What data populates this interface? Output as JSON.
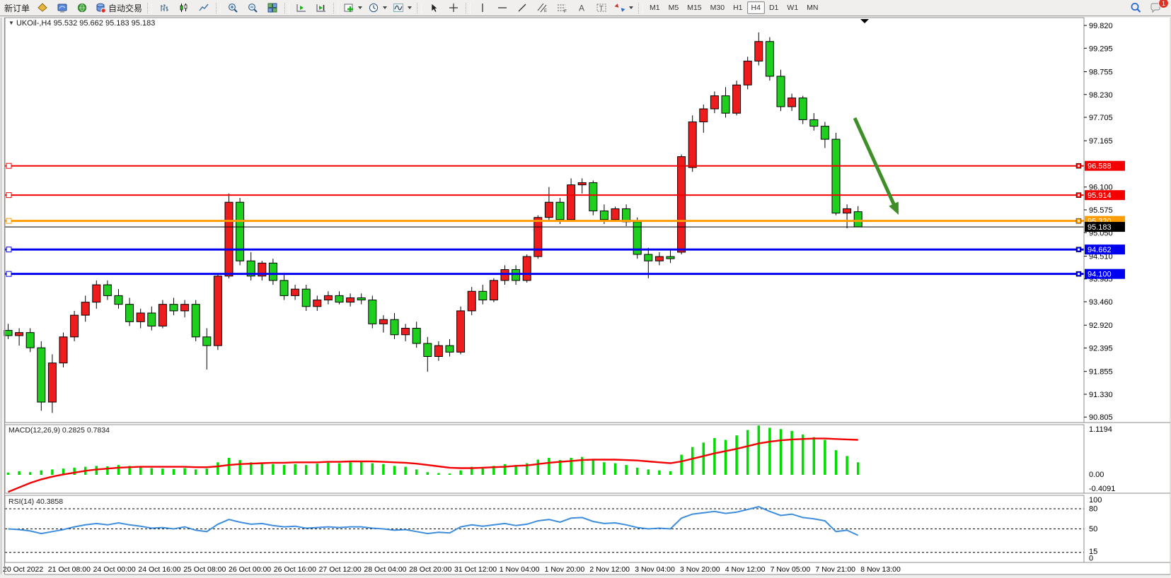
{
  "toolbar": {
    "new_order": "新订单",
    "autotrade": "自动交易",
    "timeframes": [
      "M1",
      "M5",
      "M15",
      "M30",
      "H1",
      "H4",
      "D1",
      "W1",
      "MN"
    ],
    "active_timeframe": "H4",
    "chat_badge": "1",
    "icons": [
      "gold-prism-icon",
      "blue-monitor-icon",
      "green-globe-icon",
      "autotrade-status-icon",
      "bar-chart-icon",
      "candlestick-chart-icon",
      "line-chart-icon",
      "zoom-in-icon",
      "zoom-out-icon",
      "tile-windows-icon",
      "auto-scroll-icon",
      "chart-shift-icon",
      "indicators-add-icon",
      "periods-clock-icon",
      "objects-wave-icon",
      "cursor-icon",
      "crosshair-icon",
      "vertical-line-icon",
      "horizontal-line-icon",
      "trendline-icon",
      "equidistant-channel-icon",
      "fibonacci-icon",
      "text-icon",
      "text-label-icon",
      "arrows-icon",
      "search-icon",
      "chat-icon"
    ]
  },
  "chart_header": {
    "expander": "▼",
    "symbol": "UKOil-,H4",
    "ohlc": "95.532 95.662 95.183 95.183"
  },
  "chart_data": {
    "type": "candlestick+macd+rsi",
    "title": "UKOil-,H4 95.532 95.662 95.183 95.183",
    "color_convention": "up=red down=green (CN)",
    "colors": {
      "up": "#ee1c1c",
      "down": "#1ecf1e",
      "wick": "#000000",
      "macd_hist": "#00dc00",
      "macd_signal": "#f40000",
      "rsi_line": "#3e8ddd",
      "arrow": "#3f8f29",
      "line_red": "#f40000",
      "line_orange": "#ff9c00",
      "line_blue": "#0000f0",
      "line_black": "#000000"
    },
    "price_axis": {
      "ticks": [
        99.82,
        99.295,
        98.755,
        98.23,
        97.705,
        97.165,
        96.1,
        95.575,
        95.05,
        94.51,
        93.985,
        93.46,
        92.92,
        92.395,
        91.855,
        91.33,
        90.805
      ]
    },
    "hlines": [
      {
        "price": 96.588,
        "color": "#f40000",
        "width": 2
      },
      {
        "price": 95.914,
        "color": "#f40000",
        "width": 2
      },
      {
        "price": 95.32,
        "color": "#ff9c00",
        "width": 3
      },
      {
        "price": 94.662,
        "color": "#0000f0",
        "width": 3
      },
      {
        "price": 94.1,
        "color": "#0000f0",
        "width": 3
      }
    ],
    "current_price": {
      "value": 95.183,
      "color": "#000000"
    },
    "time_labels": [
      "20 Oct 2022",
      "21 Oct 08:00",
      "24 Oct 00:00",
      "24 Oct 16:00",
      "25 Oct 08:00",
      "26 Oct 00:00",
      "26 Oct 16:00",
      "27 Oct 12:00",
      "28 Oct 04:00",
      "28 Oct 20:00",
      "31 Oct 12:00",
      "1 Nov 04:00",
      "1 Nov 20:00",
      "2 Nov 12:00",
      "3 Nov 04:00",
      "3 Nov 20:00",
      "4 Nov 12:00",
      "7 Nov 05:00",
      "7 Nov 21:00",
      "8 Nov 13:00"
    ],
    "candles": [
      [
        92.8,
        92.95,
        92.6,
        92.68
      ],
      [
        92.68,
        92.85,
        92.45,
        92.75
      ],
      [
        92.75,
        92.85,
        92.3,
        92.4
      ],
      [
        92.4,
        92.55,
        90.95,
        91.15
      ],
      [
        91.15,
        92.25,
        90.9,
        92.05
      ],
      [
        92.05,
        92.75,
        91.95,
        92.65
      ],
      [
        92.65,
        93.25,
        92.55,
        93.15
      ],
      [
        93.15,
        93.6,
        93.0,
        93.45
      ],
      [
        93.45,
        93.95,
        93.3,
        93.85
      ],
      [
        93.85,
        93.95,
        93.5,
        93.6
      ],
      [
        93.6,
        93.75,
        93.3,
        93.4
      ],
      [
        93.4,
        93.55,
        92.9,
        93.0
      ],
      [
        93.0,
        93.3,
        92.85,
        93.2
      ],
      [
        93.2,
        93.35,
        92.8,
        92.9
      ],
      [
        92.9,
        93.5,
        92.85,
        93.4
      ],
      [
        93.4,
        93.55,
        93.15,
        93.25
      ],
      [
        93.25,
        93.5,
        93.1,
        93.4
      ],
      [
        93.4,
        93.5,
        92.55,
        92.65
      ],
      [
        92.65,
        92.85,
        91.9,
        92.45
      ],
      [
        92.45,
        94.1,
        92.35,
        94.05
      ],
      [
        94.05,
        95.95,
        94.0,
        95.75
      ],
      [
        95.75,
        95.85,
        94.3,
        94.4
      ],
      [
        94.4,
        94.6,
        93.95,
        94.05
      ],
      [
        94.05,
        94.4,
        93.95,
        94.35
      ],
      [
        94.35,
        94.45,
        93.85,
        93.95
      ],
      [
        93.95,
        94.1,
        93.5,
        93.6
      ],
      [
        93.6,
        93.85,
        93.5,
        93.75
      ],
      [
        93.75,
        93.85,
        93.25,
        93.35
      ],
      [
        93.35,
        93.6,
        93.25,
        93.5
      ],
      [
        93.5,
        93.7,
        93.4,
        93.6
      ],
      [
        93.6,
        93.7,
        93.4,
        93.45
      ],
      [
        93.45,
        93.65,
        93.35,
        93.55
      ],
      [
        93.55,
        93.65,
        93.4,
        93.5
      ],
      [
        93.5,
        93.6,
        92.85,
        92.95
      ],
      [
        92.95,
        93.15,
        92.75,
        93.05
      ],
      [
        93.05,
        93.2,
        92.6,
        92.7
      ],
      [
        92.7,
        92.95,
        92.55,
        92.85
      ],
      [
        92.85,
        93.0,
        92.4,
        92.5
      ],
      [
        92.5,
        92.65,
        91.85,
        92.2
      ],
      [
        92.2,
        92.55,
        92.1,
        92.45
      ],
      [
        92.45,
        92.6,
        92.2,
        92.3
      ],
      [
        92.3,
        93.35,
        92.25,
        93.25
      ],
      [
        93.25,
        93.8,
        93.15,
        93.7
      ],
      [
        93.7,
        93.85,
        93.4,
        93.5
      ],
      [
        93.5,
        94.0,
        93.45,
        93.95
      ],
      [
        93.95,
        94.3,
        93.85,
        94.2
      ],
      [
        94.2,
        94.3,
        93.85,
        93.95
      ],
      [
        93.95,
        94.55,
        93.9,
        94.5
      ],
      [
        94.5,
        95.45,
        94.45,
        95.4
      ],
      [
        95.4,
        96.1,
        95.3,
        95.75
      ],
      [
        95.75,
        95.85,
        95.25,
        95.35
      ],
      [
        95.35,
        96.3,
        95.3,
        96.15
      ],
      [
        96.15,
        96.3,
        95.95,
        96.2
      ],
      [
        96.2,
        96.25,
        95.45,
        95.55
      ],
      [
        95.55,
        95.7,
        95.25,
        95.35
      ],
      [
        95.35,
        95.65,
        95.3,
        95.6
      ],
      [
        95.6,
        95.7,
        95.2,
        95.3
      ],
      [
        95.3,
        95.4,
        94.45,
        94.55
      ],
      [
        94.55,
        94.7,
        94.0,
        94.4
      ],
      [
        94.4,
        94.6,
        94.3,
        94.5
      ],
      [
        94.5,
        94.65,
        94.35,
        94.45
      ],
      [
        94.6,
        96.85,
        94.55,
        96.8
      ],
      [
        96.55,
        97.75,
        96.45,
        97.6
      ],
      [
        97.6,
        98.0,
        97.35,
        97.9
      ],
      [
        97.9,
        98.3,
        97.8,
        98.2
      ],
      [
        98.2,
        98.4,
        97.7,
        97.8
      ],
      [
        97.8,
        98.55,
        97.75,
        98.45
      ],
      [
        98.45,
        99.1,
        98.35,
        99.0
      ],
      [
        99.0,
        99.66,
        98.9,
        99.45
      ],
      [
        99.45,
        99.55,
        98.55,
        98.65
      ],
      [
        98.65,
        98.8,
        97.85,
        97.95
      ],
      [
        97.95,
        98.25,
        97.85,
        98.15
      ],
      [
        98.15,
        98.2,
        97.55,
        97.65
      ],
      [
        97.65,
        97.8,
        97.4,
        97.5
      ],
      [
        97.5,
        97.6,
        97.0,
        97.2
      ],
      [
        97.2,
        97.35,
        95.45,
        95.5
      ],
      [
        95.5,
        95.7,
        95.15,
        95.6
      ],
      [
        95.532,
        95.662,
        95.183,
        95.183
      ]
    ],
    "macd": {
      "label": "MACD(12,26,9)",
      "values_text": "0.2825 0.7834",
      "axis": [
        "1.1194",
        "0.00",
        "-0.4091"
      ],
      "histogram": [
        0.05,
        0.08,
        0.06,
        0.1,
        0.12,
        0.14,
        0.16,
        0.18,
        0.2,
        0.19,
        0.22,
        0.2,
        0.18,
        0.15,
        0.14,
        0.13,
        0.15,
        0.12,
        0.14,
        0.28,
        0.38,
        0.33,
        0.28,
        0.26,
        0.24,
        0.22,
        0.24,
        0.22,
        0.25,
        0.27,
        0.26,
        0.28,
        0.3,
        0.26,
        0.24,
        0.2,
        0.18,
        0.12,
        0.06,
        0.04,
        0.03,
        0.1,
        0.18,
        0.16,
        0.2,
        0.24,
        0.22,
        0.26,
        0.34,
        0.38,
        0.33,
        0.38,
        0.4,
        0.34,
        0.28,
        0.26,
        0.22,
        0.16,
        0.12,
        0.1,
        0.08,
        0.45,
        0.62,
        0.72,
        0.82,
        0.78,
        0.88,
        1.0,
        1.1,
        1.05,
        1.02,
        0.98,
        0.9,
        0.84,
        0.78,
        0.55,
        0.42,
        0.28
      ],
      "signal": [
        -0.38,
        -0.28,
        -0.18,
        -0.1,
        -0.04,
        0.01,
        0.05,
        0.09,
        0.12,
        0.14,
        0.16,
        0.17,
        0.18,
        0.18,
        0.18,
        0.18,
        0.18,
        0.17,
        0.17,
        0.19,
        0.22,
        0.24,
        0.25,
        0.26,
        0.27,
        0.27,
        0.28,
        0.28,
        0.28,
        0.29,
        0.29,
        0.3,
        0.3,
        0.3,
        0.29,
        0.28,
        0.27,
        0.25,
        0.22,
        0.19,
        0.16,
        0.15,
        0.15,
        0.16,
        0.17,
        0.18,
        0.2,
        0.21,
        0.24,
        0.27,
        0.29,
        0.31,
        0.33,
        0.34,
        0.34,
        0.34,
        0.33,
        0.32,
        0.3,
        0.28,
        0.26,
        0.3,
        0.36,
        0.42,
        0.48,
        0.53,
        0.58,
        0.64,
        0.7,
        0.74,
        0.77,
        0.79,
        0.8,
        0.81,
        0.81,
        0.8,
        0.79,
        0.78
      ]
    },
    "rsi": {
      "label": "RSI(14)",
      "value_text": "40.3858",
      "axis": [
        "100",
        "80",
        "50",
        "15",
        "0"
      ],
      "levels": [
        80,
        50,
        15
      ],
      "series": [
        50,
        49,
        47,
        43,
        46,
        49,
        53,
        56,
        58,
        56,
        59,
        56,
        54,
        51,
        52,
        50,
        53,
        48,
        46,
        57,
        64,
        60,
        57,
        58,
        55,
        53,
        54,
        51,
        52,
        53,
        52,
        53,
        53,
        51,
        50,
        48,
        49,
        46,
        43,
        45,
        44,
        53,
        56,
        54,
        56,
        58,
        55,
        57,
        62,
        64,
        60,
        66,
        67,
        61,
        58,
        59,
        56,
        52,
        50,
        51,
        50,
        66,
        72,
        74,
        76,
        73,
        75,
        79,
        83,
        76,
        70,
        72,
        67,
        65,
        62,
        46,
        48,
        40.4
      ]
    },
    "arrow": {
      "from_xy": [
        1208,
        166
      ],
      "to_xy": [
        1270,
        303
      ]
    }
  }
}
